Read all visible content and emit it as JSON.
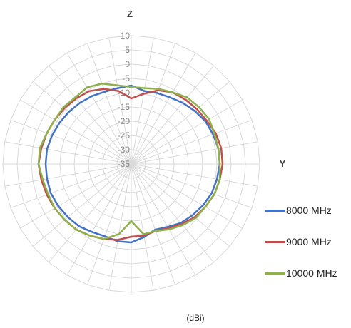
{
  "chart_data": {
    "type": "radar",
    "axis_top_label": "Z",
    "axis_right_label": "Y",
    "unit_label": "(dBi)",
    "radial_ticks": [
      "10",
      "5",
      "0",
      "-5",
      "-10",
      "-15",
      "-20",
      "-25",
      "-30",
      "-35"
    ],
    "radial_range": [
      -35,
      10
    ],
    "angle_step_deg": 10,
    "grid": true,
    "legend_position": "right",
    "angles_deg": [
      0,
      10,
      20,
      30,
      40,
      50,
      60,
      70,
      80,
      90,
      100,
      110,
      120,
      130,
      140,
      150,
      160,
      170,
      180,
      190,
      200,
      210,
      220,
      230,
      240,
      250,
      260,
      270,
      280,
      290,
      300,
      310,
      320,
      330,
      340,
      350
    ],
    "series": [
      {
        "name": "8000 MHz",
        "color": "#4472C4",
        "values": [
          -7.5,
          -9,
          -8.5,
          -8,
          -7,
          -6,
          -5,
          -4.5,
          -4,
          -4,
          -4.5,
          -5,
          -6,
          -7,
          -8,
          -9.5,
          -10.5,
          -9,
          -7.5,
          -7.5,
          -8,
          -7.5,
          -6.5,
          -6,
          -5.5,
          -5,
          -5,
          -5,
          -5,
          -5.5,
          -6,
          -6.5,
          -7,
          -7.5,
          -8,
          -8
        ]
      },
      {
        "name": "9000 MHz",
        "color": "#C0504D",
        "values": [
          -12,
          -10,
          -7.5,
          -6,
          -5.5,
          -5,
          -4.5,
          -3.5,
          -3,
          -3,
          -3.5,
          -4,
          -5,
          -6,
          -7.5,
          -9,
          -10,
          -9.5,
          -9.5,
          -8,
          -7,
          -6,
          -5,
          -4.5,
          -4,
          -3.5,
          -3,
          -2.5,
          -3,
          -3.5,
          -4,
          -4.5,
          -5,
          -5.5,
          -7,
          -9
        ]
      },
      {
        "name": "10000 MHz",
        "color": "#8FB04A",
        "values": [
          -8,
          -8,
          -7,
          -6,
          -4.5,
          -4,
          -3.5,
          -4,
          -4,
          -4,
          -3.5,
          -4,
          -5,
          -5.5,
          -7,
          -8.5,
          -10,
          -10,
          -15,
          -10,
          -7,
          -6,
          -5,
          -4.5,
          -4,
          -4,
          -3.5,
          -2.5,
          -2.5,
          -3.5,
          -4,
          -4,
          -4.5,
          -4,
          -5,
          -7
        ]
      }
    ]
  }
}
